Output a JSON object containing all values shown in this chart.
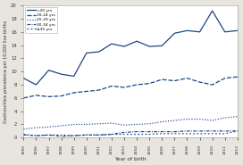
{
  "years": [
    1995,
    1996,
    1997,
    1998,
    1999,
    2000,
    2001,
    2002,
    2003,
    2004,
    2005,
    2006,
    2007,
    2008,
    2009,
    2010,
    2011,
    2012
  ],
  "series": {
    "<20 yrs": [
      9.0,
      8.0,
      10.2,
      9.6,
      9.3,
      12.8,
      13.0,
      14.2,
      13.8,
      14.6,
      13.8,
      13.9,
      15.8,
      16.2,
      16.0,
      19.2,
      16.0,
      16.2
    ],
    "20-24 yrs": [
      6.0,
      6.4,
      6.2,
      6.3,
      6.8,
      7.0,
      7.2,
      7.8,
      7.6,
      8.0,
      8.2,
      8.8,
      8.6,
      9.0,
      8.4,
      8.0,
      9.0,
      9.2
    ],
    "25-29 yrs": [
      1.3,
      1.5,
      1.6,
      1.8,
      2.0,
      2.0,
      2.1,
      2.2,
      1.9,
      2.0,
      2.1,
      2.4,
      2.6,
      2.8,
      2.8,
      2.6,
      3.0,
      3.2
    ],
    "30-34 yrs": [
      0.4,
      0.3,
      0.4,
      0.2,
      0.3,
      0.4,
      0.4,
      0.5,
      0.8,
      0.9,
      0.9,
      0.9,
      0.9,
      1.0,
      1.0,
      1.0,
      1.0,
      1.0
    ],
    ">=35 yrs": [
      0.5,
      0.3,
      0.4,
      0.4,
      0.3,
      0.4,
      0.4,
      0.5,
      0.5,
      0.5,
      0.5,
      0.6,
      0.6,
      0.6,
      0.6,
      0.6,
      0.6,
      1.0
    ]
  },
  "legend_labels": [
    "<20 yrs",
    "20-24 yrs",
    "25-29 yrs",
    "30-34 yrs",
    ">=35 yrs"
  ],
  "legend_display": [
    "<20 yrs",
    "20-24 yrs",
    "25-29 yrs",
    "30-34 yrs",
    "≥35 yrs"
  ],
  "ylim": [
    0,
    20
  ],
  "yticks": [
    0,
    2,
    4,
    6,
    8,
    10,
    12,
    14,
    16,
    18,
    20
  ],
  "xlabel": "Year of birth",
  "ylabel": "Gastroschisis prevalence per 10,000 live births",
  "line_color": "#1c4587",
  "bg_color": "#e8e4de",
  "plot_bg": "#ffffff"
}
